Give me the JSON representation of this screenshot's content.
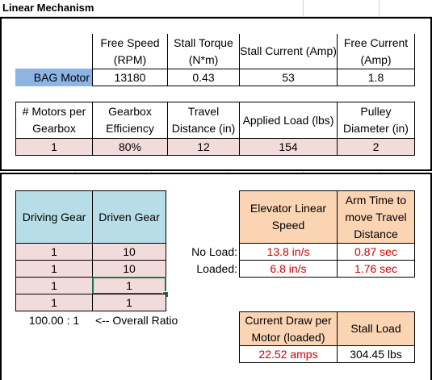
{
  "title": "Linear Mechanism",
  "motor_table": {
    "headers": [
      "Free Speed (RPM)",
      "Stall Torque (N*m)",
      "Stall Current (Amp)",
      "Free Current (Amp)"
    ],
    "motor_name": "BAG Motor",
    "values": [
      "13180",
      "0.43",
      "53",
      "1.8"
    ]
  },
  "params_table": {
    "headers": [
      "# Motors per Gearbox",
      "Gearbox Efficiency",
      "Travel Distance (in)",
      "Applied Load (lbs)",
      "Pulley Diameter (in)"
    ],
    "values": [
      "1",
      "80%",
      "12",
      "154",
      "2"
    ]
  },
  "gear_table": {
    "headers": [
      "Driving Gear",
      "Driven Gear"
    ],
    "rows": [
      [
        "1",
        "10"
      ],
      [
        "1",
        "10"
      ],
      [
        "1",
        "1"
      ],
      [
        "1",
        "1"
      ]
    ],
    "ratio": "100.00 : 1",
    "ratio_label": "<-- Overall Ratio"
  },
  "results": {
    "headers": [
      "Elevator Linear Speed",
      "Arm Time to move Travel Distance"
    ],
    "rows": [
      {
        "label": "No Load:",
        "speed": "13.8 in/s",
        "time": "0.87 sec"
      },
      {
        "label": "Loaded:",
        "speed": "6.8 in/s",
        "time": "1.76 sec"
      }
    ]
  },
  "current": {
    "headers": [
      "Current Draw per Motor (loaded)",
      "Stall Load"
    ],
    "values": [
      "22.52 amps",
      "304.45 lbs"
    ]
  }
}
